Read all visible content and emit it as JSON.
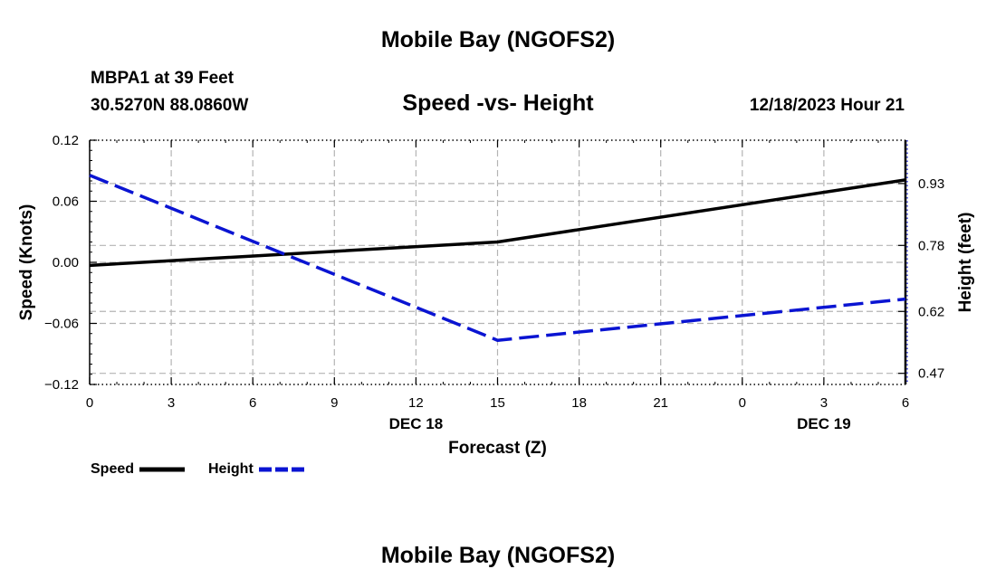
{
  "header": {
    "title": "Mobile Bay (NGOFS2)",
    "station": "MBPA1 at 39 Feet",
    "coordinates": "30.5270N  88.0860W",
    "subtitle": "Speed -vs- Height",
    "datetime": "12/18/2023 Hour 21",
    "footer_title": "Mobile Bay (NGOFS2)"
  },
  "legend": {
    "speed_label": "Speed",
    "height_label": "Height"
  },
  "colors": {
    "speed": "#000000",
    "height": "#0a14d2",
    "grid": "#b4b4b4"
  },
  "chart_data": {
    "type": "line",
    "title": "Speed -vs- Height",
    "xlabel": "Forecast (Z)",
    "ylabel": "Speed (Knots)",
    "y2label": "Height (feet)",
    "x": [
      0,
      15,
      30
    ],
    "x_tick_labels": [
      "0",
      "3",
      "6",
      "9",
      "12",
      "15",
      "18",
      "21",
      "0",
      "3",
      "6"
    ],
    "date_labels": [
      {
        "x": 12,
        "label": "DEC 18"
      },
      {
        "x": 27,
        "label": "DEC 19"
      }
    ],
    "ylim": [
      -0.12,
      0.12
    ],
    "y_ticks": [
      "0.12",
      "0.06",
      "0.00",
      "−0.06",
      "−0.12"
    ],
    "y_tick_values": [
      0.12,
      0.06,
      0.0,
      -0.06,
      -0.12
    ],
    "y2lim": [
      0.443,
      1.035
    ],
    "y2_ticks": [
      "0.93",
      "0.78",
      "0.62",
      "0.47"
    ],
    "y2_tick_values": [
      0.93,
      0.78,
      0.62,
      0.47
    ],
    "grid": true,
    "series": [
      {
        "name": "Speed",
        "axis": "left",
        "style": "solid",
        "x": [
          0,
          15,
          30
        ],
        "values": [
          -0.003,
          0.02,
          0.081
        ]
      },
      {
        "name": "Height",
        "axis": "right",
        "style": "dashed",
        "x": [
          0,
          15,
          30
        ],
        "values": [
          0.95,
          0.55,
          0.65
        ]
      }
    ]
  }
}
